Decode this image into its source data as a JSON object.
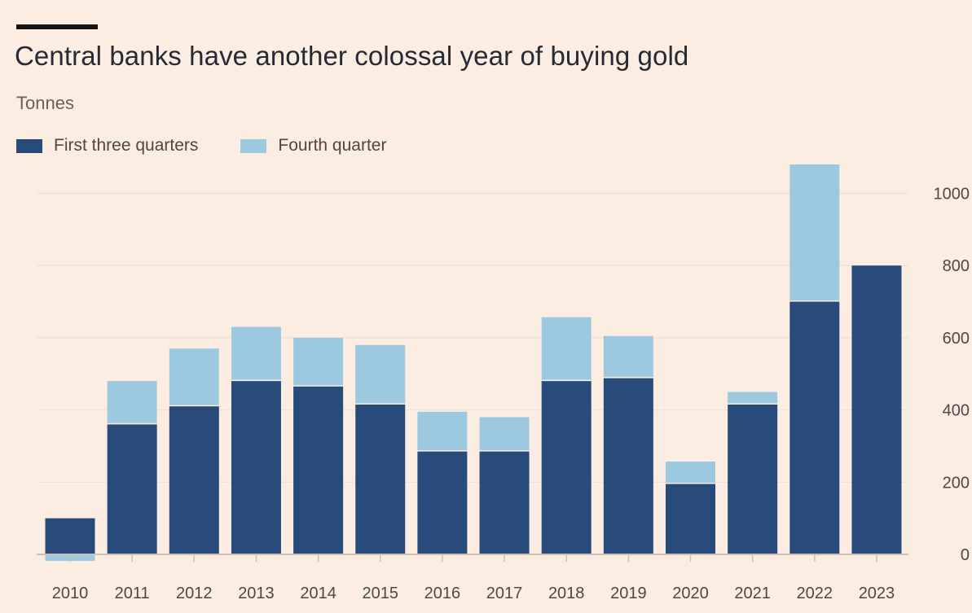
{
  "header": {
    "title": "Central banks have another colossal year of buying gold",
    "subtitle": "Tonnes"
  },
  "colors": {
    "background": "#fcede2",
    "first_three_quarters": "#284b7c",
    "fourth_quarter": "#9cc9e0",
    "gridline": "#efe2d8",
    "axis": "#cdbfb5"
  },
  "legend": {
    "items": [
      {
        "label": "First three quarters",
        "color": "#284b7c"
      },
      {
        "label": "Fourth quarter",
        "color": "#9cc9e0"
      }
    ]
  },
  "chart_data": {
    "type": "bar",
    "stacked": true,
    "title": "Central banks have another colossal year of buying gold",
    "subtitle": "Tonnes",
    "xlabel": "",
    "ylabel": "",
    "categories": [
      "2010",
      "2011",
      "2012",
      "2013",
      "2014",
      "2015",
      "2016",
      "2017",
      "2018",
      "2019",
      "2020",
      "2021",
      "2022",
      "2023"
    ],
    "series": [
      {
        "name": "First three quarters",
        "color": "#284b7c",
        "values": [
          100,
          360,
          410,
          480,
          465,
          415,
          285,
          285,
          480,
          488,
          195,
          415,
          700,
          800
        ]
      },
      {
        "name": "Fourth quarter",
        "color": "#9cc9e0",
        "values": [
          -18,
          120,
          160,
          150,
          135,
          165,
          110,
          95,
          177,
          117,
          62,
          35,
          380,
          0
        ]
      }
    ],
    "ylim": [
      -18,
      1090
    ],
    "yticks": [
      0,
      200,
      400,
      600,
      800,
      1000
    ],
    "y_axis_position": "right",
    "grid": true,
    "legend_position": "top-left"
  }
}
